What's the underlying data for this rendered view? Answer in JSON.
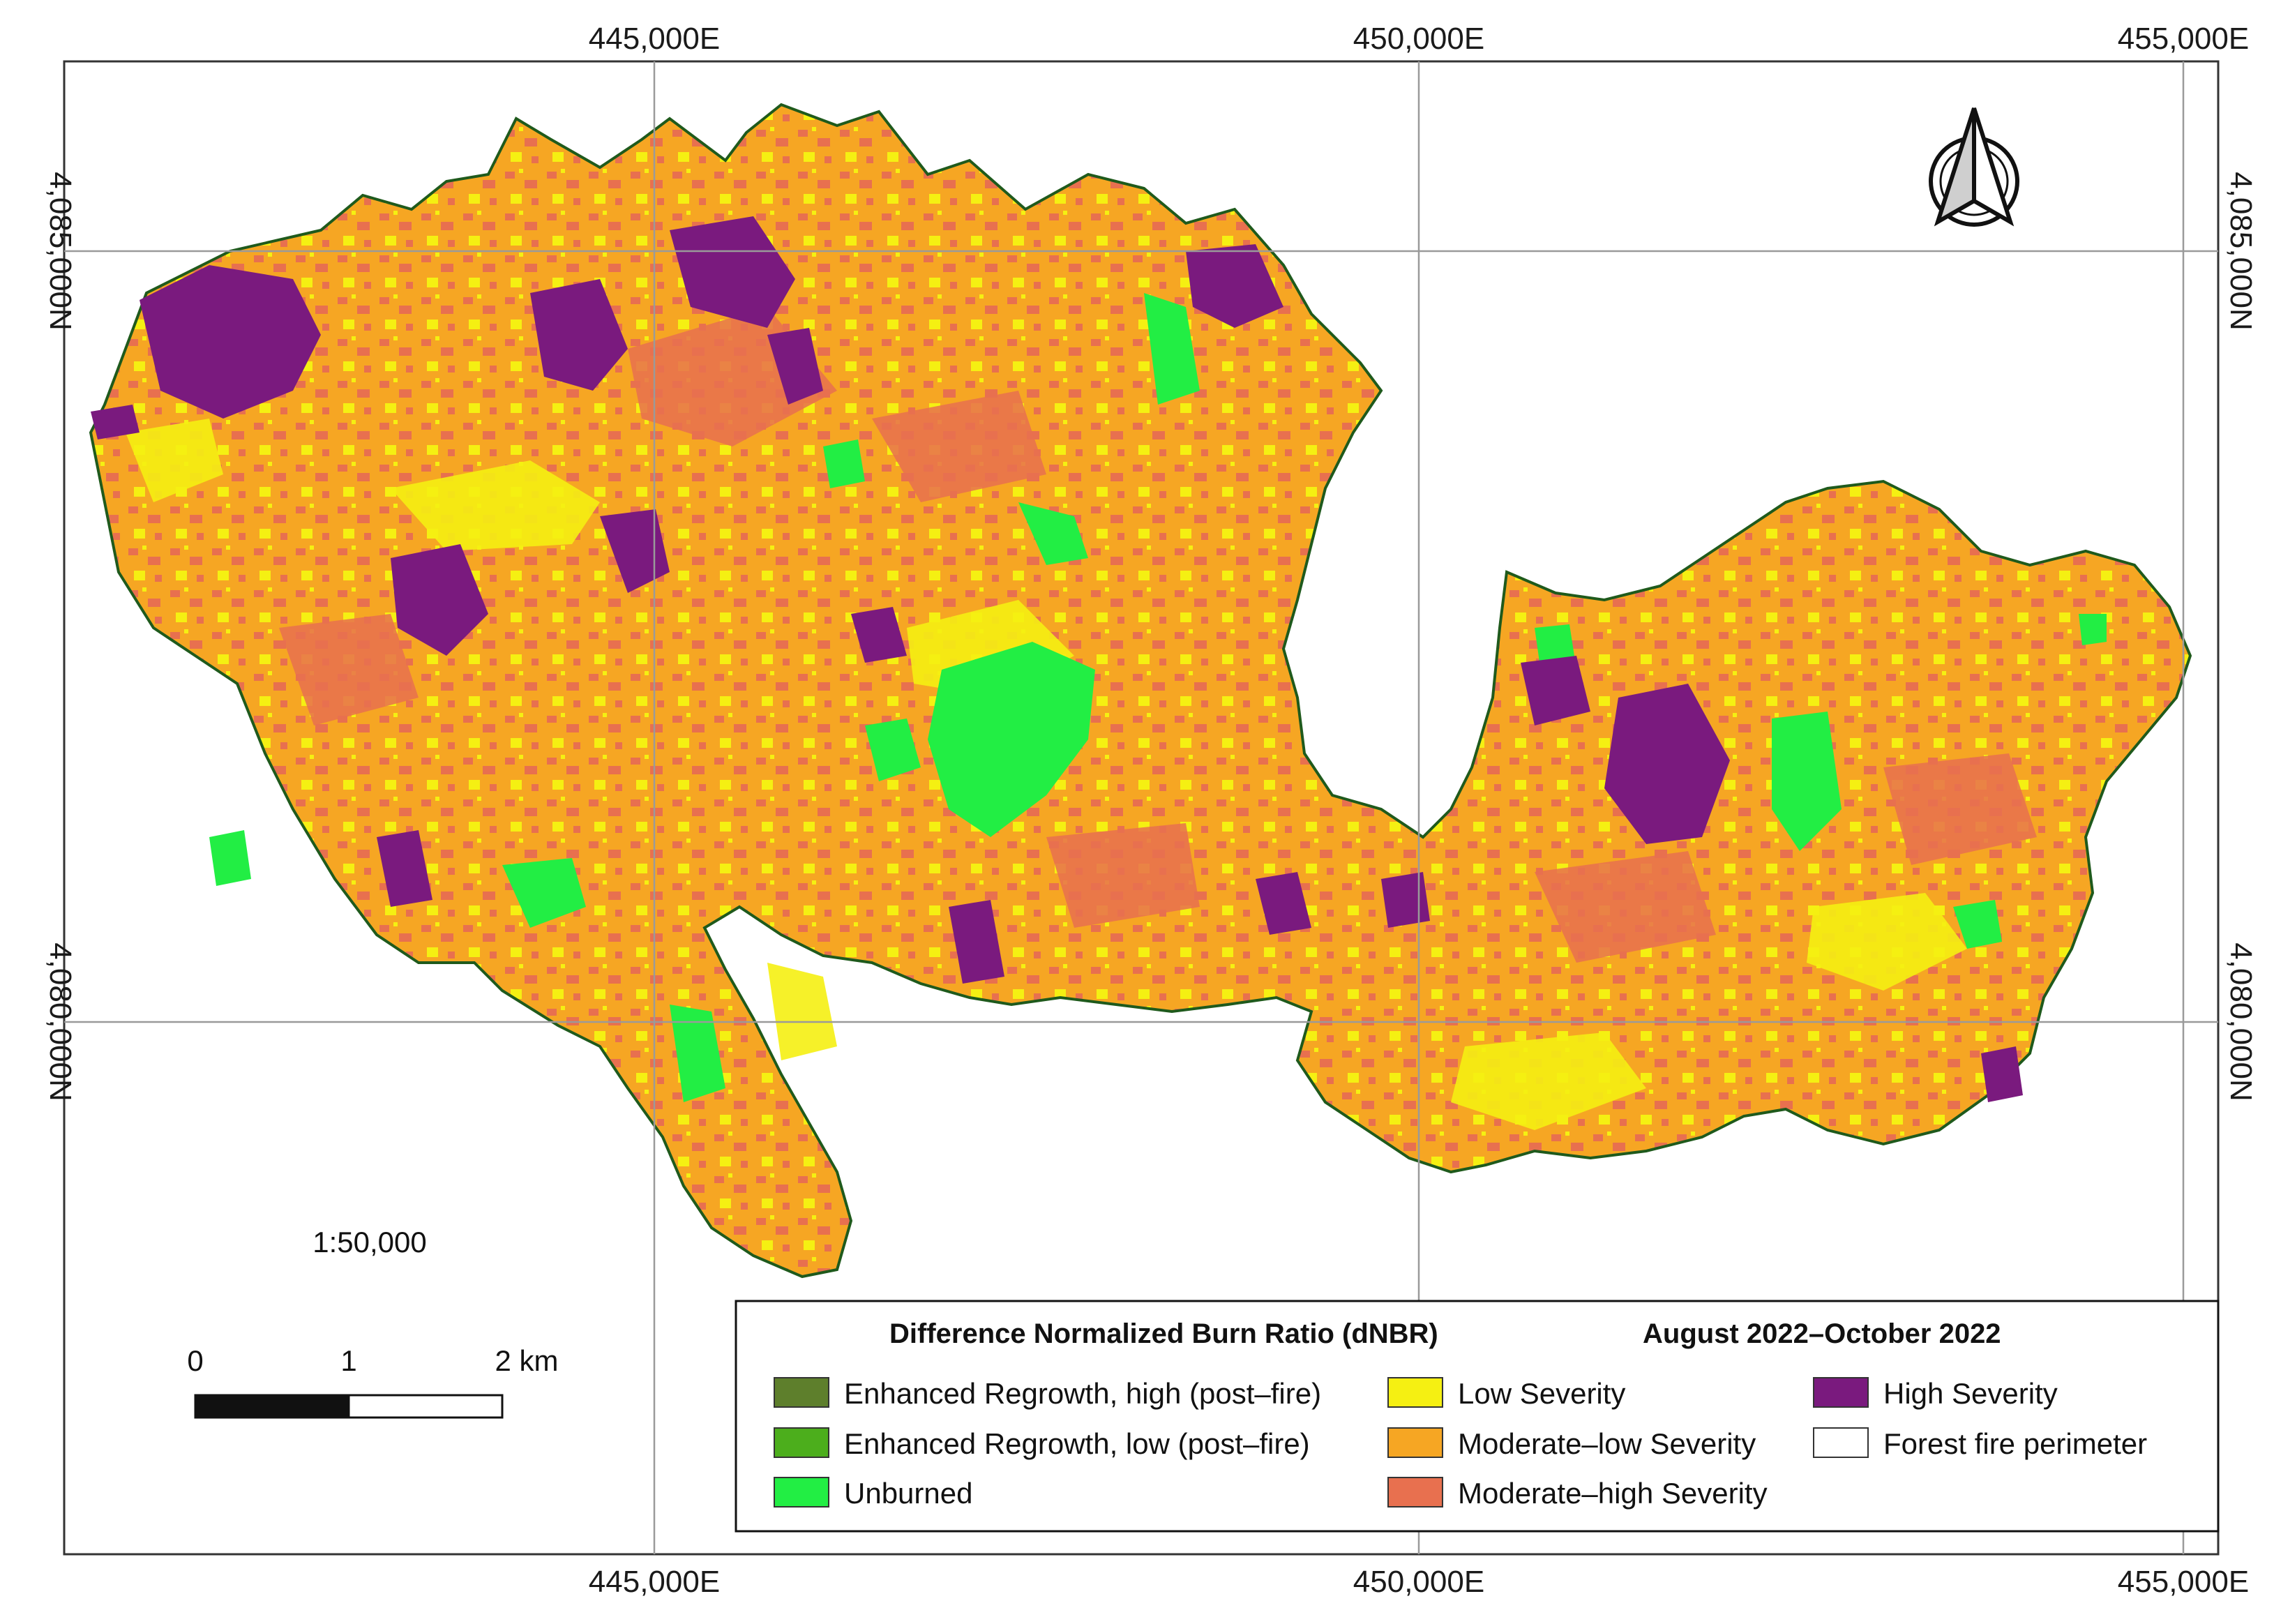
{
  "map": {
    "graticule": {
      "top_labels": [
        "445,000E",
        "450,000E",
        "455,000E"
      ],
      "bottom_labels": [
        "445,000E",
        "450,000E",
        "455,000E"
      ],
      "left_labels": [
        "4,085,000N",
        "4,080,000N"
      ],
      "right_labels": [
        "4,085,000N",
        "4,080,000N"
      ]
    },
    "scale_ratio": "1:50,000",
    "scale_bar": {
      "ticks": [
        "0",
        "1",
        "2 km"
      ]
    },
    "north_arrow_icon": "north-arrow-icon"
  },
  "legend": {
    "title": "Difference Normalized Burn Ratio (dNBR)",
    "period": "August 2022–October 2022",
    "items": [
      {
        "label": "Enhanced Regrowth, high (post–fire)",
        "color": "#5e7f2c"
      },
      {
        "label": "Enhanced Regrowth, low (post–fire)",
        "color": "#4cae1c"
      },
      {
        "label": "Unburned",
        "color": "#22ee44"
      },
      {
        "label": "Low Severity",
        "color": "#f5f012"
      },
      {
        "label": "Moderate–low Severity",
        "color": "#f6a623"
      },
      {
        "label": "Moderate–high Severity",
        "color": "#e8704f"
      },
      {
        "label": "High Severity",
        "color": "#7a1a7e"
      },
      {
        "label": "Forest fire perimeter",
        "color": "#ffffff"
      }
    ]
  }
}
